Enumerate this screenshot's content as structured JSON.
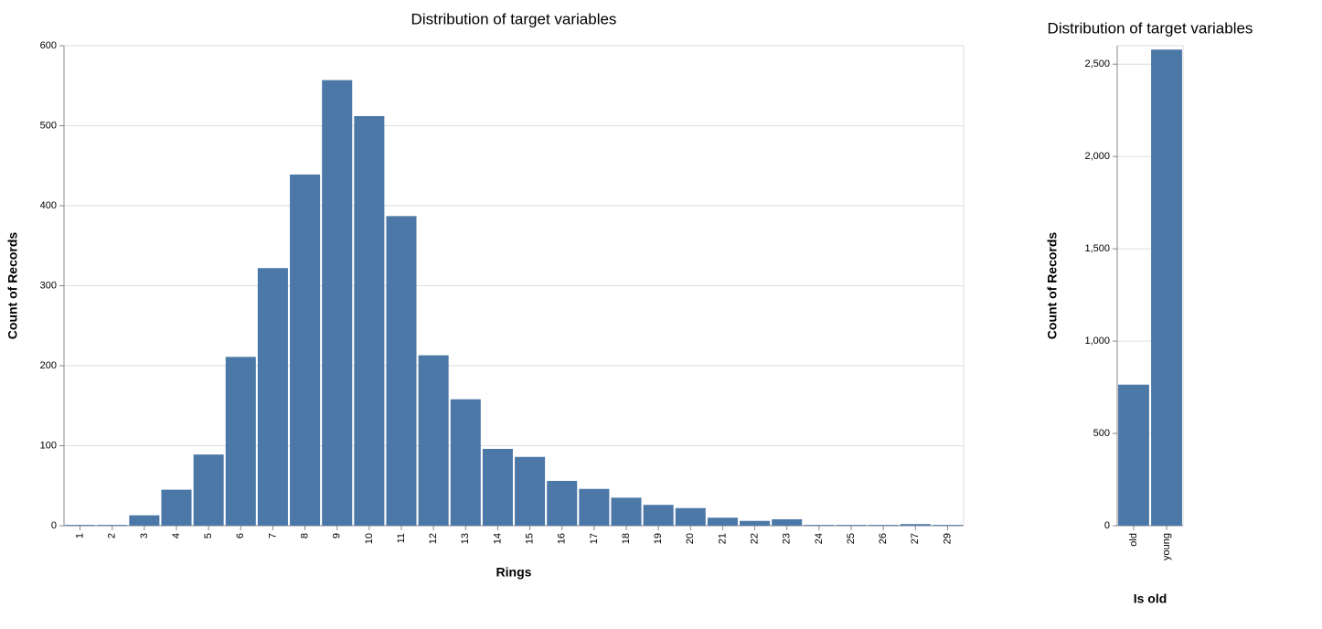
{
  "chart_data": [
    {
      "type": "bar",
      "title": "Distribution of target variables",
      "x_label": "Rings",
      "y_label": "Count of Records",
      "categories": [
        "1",
        "2",
        "3",
        "4",
        "5",
        "6",
        "7",
        "8",
        "9",
        "10",
        "11",
        "12",
        "13",
        "14",
        "15",
        "16",
        "17",
        "18",
        "19",
        "20",
        "21",
        "22",
        "23",
        "24",
        "25",
        "26",
        "27",
        "29"
      ],
      "values": [
        1,
        1,
        13,
        45,
        89,
        211,
        322,
        439,
        557,
        512,
        387,
        213,
        158,
        96,
        86,
        56,
        46,
        35,
        26,
        22,
        10,
        6,
        8,
        1,
        1,
        1,
        2,
        1
      ],
      "color": "#4c78a8",
      "ylim": [
        0,
        600
      ],
      "yticks": [
        0,
        100,
        200,
        300,
        400,
        500,
        600
      ],
      "grid": true
    },
    {
      "type": "bar",
      "title": "Distribution of target variables",
      "x_label": "Is old",
      "y_label": "Count of Records",
      "categories": [
        "old",
        "young"
      ],
      "values": [
        764,
        2579
      ],
      "color": "#4c78a8",
      "ylim": [
        0,
        2600
      ],
      "yticks": [
        0,
        500,
        {
          "value": 1000,
          "label": "1,000"
        },
        {
          "value": 1500,
          "label": "1,500"
        },
        {
          "value": 2000,
          "label": "2,000"
        },
        {
          "value": 2500,
          "label": "2,500"
        }
      ],
      "grid": true
    }
  ]
}
